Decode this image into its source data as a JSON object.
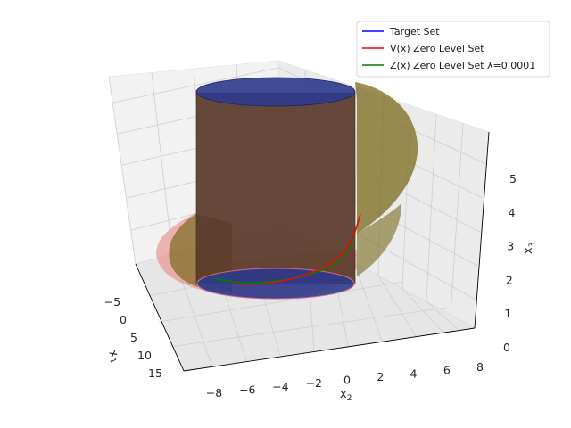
{
  "chart_data": {
    "type": "3d-surface",
    "axes": {
      "x1": {
        "label": "x",
        "sub": "1",
        "ticks": [
          "−5",
          "0",
          "5",
          "10",
          "15"
        ],
        "range": [
          -5,
          15
        ]
      },
      "x2": {
        "label": "x",
        "sub": "2",
        "ticks": [
          "−8",
          "−6",
          "−4",
          "−2",
          "0",
          "2",
          "4",
          "6",
          "8"
        ],
        "range": [
          -8,
          8
        ]
      },
      "x3": {
        "label": "x",
        "sub": "3",
        "ticks": [
          "0",
          "1",
          "2",
          "3",
          "4",
          "5"
        ],
        "range": [
          0,
          5.5
        ]
      }
    },
    "grid": true,
    "legend_position": "top-right",
    "series": [
      {
        "name": "Target Set",
        "color": "#0000ff"
      },
      {
        "name": "V(x) Zero Level Set",
        "color": "#ff0000"
      },
      {
        "name": "Z(x) Zero Level Set λ=0.0001",
        "color": "#008000"
      }
    ],
    "surface_colors": {
      "target": "#2e3a8c",
      "v_level": "#e87b7b",
      "z_level": "#7a6a1e"
    }
  }
}
